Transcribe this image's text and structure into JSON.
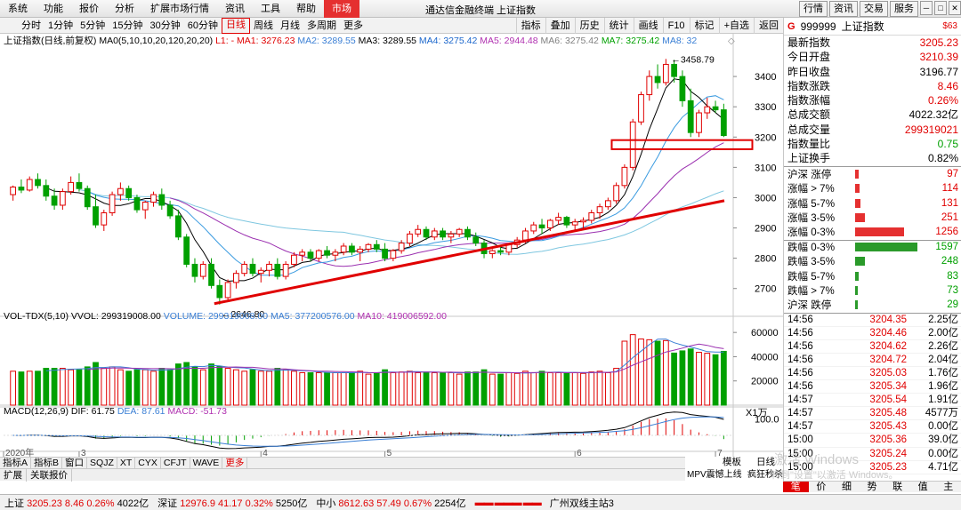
{
  "window": {
    "title": "通达信金融终端 上证指数",
    "menu": [
      {
        "label": "系统"
      },
      {
        "label": "功能"
      },
      {
        "label": "报价"
      },
      {
        "label": "分析"
      },
      {
        "label": "扩展市场行情"
      },
      {
        "label": "资讯"
      },
      {
        "label": "工具"
      },
      {
        "label": "帮助"
      },
      {
        "label": "市场",
        "active": true
      }
    ],
    "right_buttons": [
      "行情",
      "资讯",
      "交易",
      "服务"
    ]
  },
  "periods": [
    "分时",
    "1分钟",
    "5分钟",
    "15分钟",
    "30分钟",
    "60分钟",
    "日线",
    "周线",
    "月线",
    "多周期",
    "更多"
  ],
  "selected_period": "日线",
  "tools": [
    "指标",
    "叠加",
    "历史",
    "统计",
    "画线",
    "F10",
    "标记",
    "+自选",
    "返回"
  ],
  "chart_header": {
    "title": "上证指数(日线,前复权)",
    "ma_label": "MA0(5,10,10,20,120,20,20)",
    "ma_items": [
      {
        "text": "L1: -",
        "color": "#e00000"
      },
      {
        "text": "MA1: 3276.23",
        "color": "#e00000"
      },
      {
        "text": "MA2: 3289.55",
        "color": "#3a7fd5"
      },
      {
        "text": "MA3: 3289.55",
        "color": "#000000"
      },
      {
        "text": "MA4: 3275.42",
        "color": "#1a66cc"
      },
      {
        "text": "MA5: 2944.48",
        "color": "#b030b0"
      },
      {
        "text": "MA6: 3275.42",
        "color": "#808080"
      },
      {
        "text": "MA7: 3275.42",
        "color": "#00a000"
      },
      {
        "text": "MA8: 32",
        "color": "#3a7fd5"
      }
    ],
    "max_label": "3458.79",
    "min_label": "2646.80"
  },
  "colors": {
    "up": "#e00000",
    "down": "#00a000",
    "ma5": "#000000",
    "ma10": "#3a9be0",
    "ma20": "#9b30b0",
    "ma60": "#7fc7e0",
    "trend": "#e00000"
  },
  "chart_data": {
    "type": "candlestick",
    "price_axis": {
      "ticks": [
        2700,
        2800,
        2900,
        3000,
        3100,
        3200,
        3300,
        3400
      ],
      "range": [
        2620,
        3500
      ]
    },
    "volume_axis": {
      "ticks": [
        20000,
        40000,
        60000
      ]
    },
    "macd_axis": {
      "ticks": [
        100.0
      ]
    },
    "x_labels": [
      "2020年",
      "3",
      "4",
      "5",
      "6",
      "7"
    ],
    "candles": [
      [
        3010,
        3040,
        2990,
        3035
      ],
      [
        3035,
        3060,
        3015,
        3025
      ],
      [
        3025,
        3070,
        3020,
        3060
      ],
      [
        3060,
        3080,
        3030,
        3040
      ],
      [
        3040,
        3060,
        2990,
        3005
      ],
      [
        3005,
        3030,
        2960,
        2975
      ],
      [
        2975,
        3030,
        2960,
        3020
      ],
      [
        3020,
        3070,
        3010,
        3050
      ],
      [
        3050,
        3080,
        3020,
        3030
      ],
      [
        3030,
        3040,
        2960,
        2970
      ],
      [
        2970,
        3010,
        2900,
        2910
      ],
      [
        2910,
        2960,
        2890,
        2950
      ],
      [
        2950,
        3020,
        2940,
        3010
      ],
      [
        3010,
        3050,
        2990,
        3030
      ],
      [
        3030,
        3040,
        2990,
        3000
      ],
      [
        3000,
        3010,
        2950,
        2960
      ],
      [
        2960,
        2990,
        2930,
        2985
      ],
      [
        2985,
        3020,
        2970,
        3010
      ],
      [
        3010,
        3030,
        2960,
        2975
      ],
      [
        2975,
        2990,
        2930,
        2940
      ],
      [
        2940,
        2960,
        2860,
        2870
      ],
      [
        2870,
        2880,
        2770,
        2780
      ],
      [
        2780,
        2800,
        2720,
        2740
      ],
      [
        2740,
        2790,
        2730,
        2780
      ],
      [
        2780,
        2800,
        2700,
        2710
      ],
      [
        2710,
        2730,
        2647,
        2670
      ],
      [
        2670,
        2730,
        2660,
        2720
      ],
      [
        2720,
        2760,
        2700,
        2750
      ],
      [
        2750,
        2790,
        2740,
        2780
      ],
      [
        2780,
        2800,
        2740,
        2750
      ],
      [
        2750,
        2770,
        2720,
        2760
      ],
      [
        2760,
        2790,
        2740,
        2780
      ],
      [
        2780,
        2800,
        2730,
        2740
      ],
      [
        2740,
        2790,
        2730,
        2780
      ],
      [
        2780,
        2820,
        2770,
        2810
      ],
      [
        2810,
        2830,
        2790,
        2820
      ],
      [
        2820,
        2830,
        2790,
        2800
      ],
      [
        2800,
        2830,
        2790,
        2825
      ],
      [
        2825,
        2840,
        2800,
        2810
      ],
      [
        2810,
        2830,
        2790,
        2820
      ],
      [
        2820,
        2850,
        2810,
        2840
      ],
      [
        2840,
        2850,
        2810,
        2820
      ],
      [
        2820,
        2840,
        2790,
        2830
      ],
      [
        2830,
        2850,
        2820,
        2845
      ],
      [
        2845,
        2860,
        2820,
        2830
      ],
      [
        2830,
        2850,
        2790,
        2800
      ],
      [
        2800,
        2830,
        2790,
        2825
      ],
      [
        2825,
        2860,
        2815,
        2850
      ],
      [
        2850,
        2890,
        2840,
        2880
      ],
      [
        2880,
        2910,
        2870,
        2895
      ],
      [
        2895,
        2905,
        2860,
        2870
      ],
      [
        2870,
        2900,
        2860,
        2890
      ],
      [
        2890,
        2900,
        2860,
        2870
      ],
      [
        2870,
        2890,
        2850,
        2880
      ],
      [
        2880,
        2900,
        2870,
        2895
      ],
      [
        2895,
        2905,
        2860,
        2870
      ],
      [
        2870,
        2885,
        2840,
        2850
      ],
      [
        2850,
        2860,
        2800,
        2815
      ],
      [
        2815,
        2830,
        2800,
        2825
      ],
      [
        2825,
        2840,
        2810,
        2820
      ],
      [
        2820,
        2850,
        2810,
        2845
      ],
      [
        2845,
        2870,
        2835,
        2860
      ],
      [
        2860,
        2900,
        2850,
        2890
      ],
      [
        2890,
        2920,
        2880,
        2910
      ],
      [
        2910,
        2930,
        2880,
        2900
      ],
      [
        2900,
        2930,
        2890,
        2925
      ],
      [
        2925,
        2950,
        2910,
        2935
      ],
      [
        2935,
        2940,
        2900,
        2910
      ],
      [
        2910,
        2930,
        2890,
        2920
      ],
      [
        2920,
        2935,
        2900,
        2925
      ],
      [
        2925,
        2960,
        2915,
        2950
      ],
      [
        2950,
        2980,
        2930,
        2970
      ],
      [
        2970,
        3000,
        2960,
        2990
      ],
      [
        2990,
        3050,
        2980,
        3040
      ],
      [
        3040,
        3110,
        3030,
        3100
      ],
      [
        3100,
        3260,
        3090,
        3250
      ],
      [
        3250,
        3350,
        3240,
        3340
      ],
      [
        3340,
        3420,
        3320,
        3400
      ],
      [
        3400,
        3440,
        3360,
        3380
      ],
      [
        3380,
        3458,
        3370,
        3440
      ],
      [
        3440,
        3455,
        3380,
        3400
      ],
      [
        3400,
        3420,
        3300,
        3320
      ],
      [
        3320,
        3360,
        3200,
        3215
      ],
      [
        3215,
        3290,
        3200,
        3280
      ],
      [
        3280,
        3330,
        3260,
        3300
      ],
      [
        3300,
        3320,
        3280,
        3290
      ],
      [
        3290,
        3310,
        3200,
        3205
      ]
    ],
    "volumes_note": "volume bars derived from candles in script"
  },
  "vol_header": {
    "label": "VOL-TDX(5,10)",
    "items": [
      {
        "text": "VVOL: 299319008.00",
        "color": "#000000"
      },
      {
        "text": "VOLUME: 299319008.00",
        "color": "#3a7fd5"
      },
      {
        "text": "MA5: 377200576.00",
        "color": "#3a7fd5"
      },
      {
        "text": "MA10: 419006592.00",
        "color": "#b030b0"
      }
    ]
  },
  "macd_header": {
    "label": "MACD(12,26,9)",
    "items": [
      {
        "text": "DIF: 61.75",
        "color": "#000000"
      },
      {
        "text": "DEA: 87.61",
        "color": "#3a7fd5"
      },
      {
        "text": "MACD: -51.73",
        "color": "#b030b0"
      }
    ]
  },
  "x1_label": "X1万",
  "right_panel": {
    "code": "999999",
    "name": "上证指数",
    "badge": "$63",
    "quote": [
      {
        "label": "最新指数",
        "value": "3205.23",
        "color": "red"
      },
      {
        "label": "今日开盘",
        "value": "3210.39",
        "color": "red"
      },
      {
        "label": "昨日收盘",
        "value": "3196.77",
        "color": "black"
      },
      {
        "label": "指数涨跌",
        "value": "8.46",
        "color": "red"
      },
      {
        "label": "指数涨幅",
        "value": "0.26%",
        "color": "red"
      },
      {
        "label": "总成交额",
        "value": "4022.32亿",
        "color": "black"
      },
      {
        "label": "总成交量",
        "value": "299319021",
        "color": "red"
      },
      {
        "label": "指数量比",
        "value": "0.75",
        "color": "green"
      },
      {
        "label": "上证换手",
        "value": "0.82%",
        "color": "black"
      }
    ],
    "breadth": [
      {
        "label": "沪深 涨停",
        "value": 97,
        "color": "red"
      },
      {
        "label": "涨幅 > 7%",
        "value": 114,
        "color": "red"
      },
      {
        "label": "涨幅 5-7%",
        "value": 131,
        "color": "red"
      },
      {
        "label": "涨幅 3-5%",
        "value": 251,
        "color": "red"
      },
      {
        "label": "涨幅 0-3%",
        "value": 1256,
        "color": "red"
      },
      {
        "label": "跌幅 0-3%",
        "value": 1597,
        "color": "green"
      },
      {
        "label": "跌幅 3-5%",
        "value": 248,
        "color": "green"
      },
      {
        "label": "跌幅 5-7%",
        "value": 83,
        "color": "green"
      },
      {
        "label": "跌幅 > 7%",
        "value": 73,
        "color": "green"
      },
      {
        "label": "沪深 跌停",
        "value": 29,
        "color": "green"
      }
    ],
    "ticks": [
      {
        "time": "14:56",
        "price": "3204.35",
        "vol": "2.25亿"
      },
      {
        "time": "14:56",
        "price": "3204.46",
        "vol": "2.00亿"
      },
      {
        "time": "14:56",
        "price": "3204.62",
        "vol": "2.26亿"
      },
      {
        "time": "14:56",
        "price": "3204.72",
        "vol": "2.04亿"
      },
      {
        "time": "14:56",
        "price": "3205.03",
        "vol": "1.76亿"
      },
      {
        "time": "14:56",
        "price": "3205.34",
        "vol": "1.96亿"
      },
      {
        "time": "14:57",
        "price": "3205.54",
        "vol": "1.91亿"
      },
      {
        "time": "14:57",
        "price": "3205.48",
        "vol": "4577万"
      },
      {
        "time": "14:57",
        "price": "3205.43",
        "vol": "0.00亿"
      },
      {
        "time": "15:00",
        "price": "3205.36",
        "vol": "39.0亿"
      },
      {
        "time": "15:00",
        "price": "3205.24",
        "vol": "0.00亿"
      },
      {
        "time": "15:00",
        "price": "3205.23",
        "vol": "4.71亿"
      }
    ],
    "bottom_tabs": [
      {
        "label": "笔",
        "sel": true
      },
      {
        "label": "价"
      },
      {
        "label": "细"
      },
      {
        "label": "势"
      },
      {
        "label": "联"
      },
      {
        "label": "值"
      },
      {
        "label": "主"
      }
    ]
  },
  "indicator_tabs": [
    "指标A",
    "指标B",
    "窗口",
    "SQJZ",
    "XT",
    "CYX",
    "CFJT",
    "WAVE",
    "更多"
  ],
  "sub_tabs": [
    "扩展",
    "关联报价"
  ],
  "chart_tools": [
    "模板",
    "日线",
    "MPV震憾上线",
    "疯狂秒杀"
  ],
  "status": {
    "sh": {
      "label": "上证",
      "price": "3205.23",
      "chg": "8.46",
      "pct": "0.26%",
      "amt": "4022亿"
    },
    "sz": {
      "label": "深证",
      "price": "12976.9",
      "chg": "41.17",
      "pct": "0.32%",
      "amt": "5250亿"
    },
    "zx": {
      "label": "中小",
      "price": "8612.63",
      "chg": "57.49",
      "pct": "0.67%",
      "amt": "2254亿"
    },
    "station": "广州双线主站3"
  },
  "watermark": {
    "line1": "激活 Windows",
    "line2": "转到\"设置\"以激活 Windows。"
  }
}
